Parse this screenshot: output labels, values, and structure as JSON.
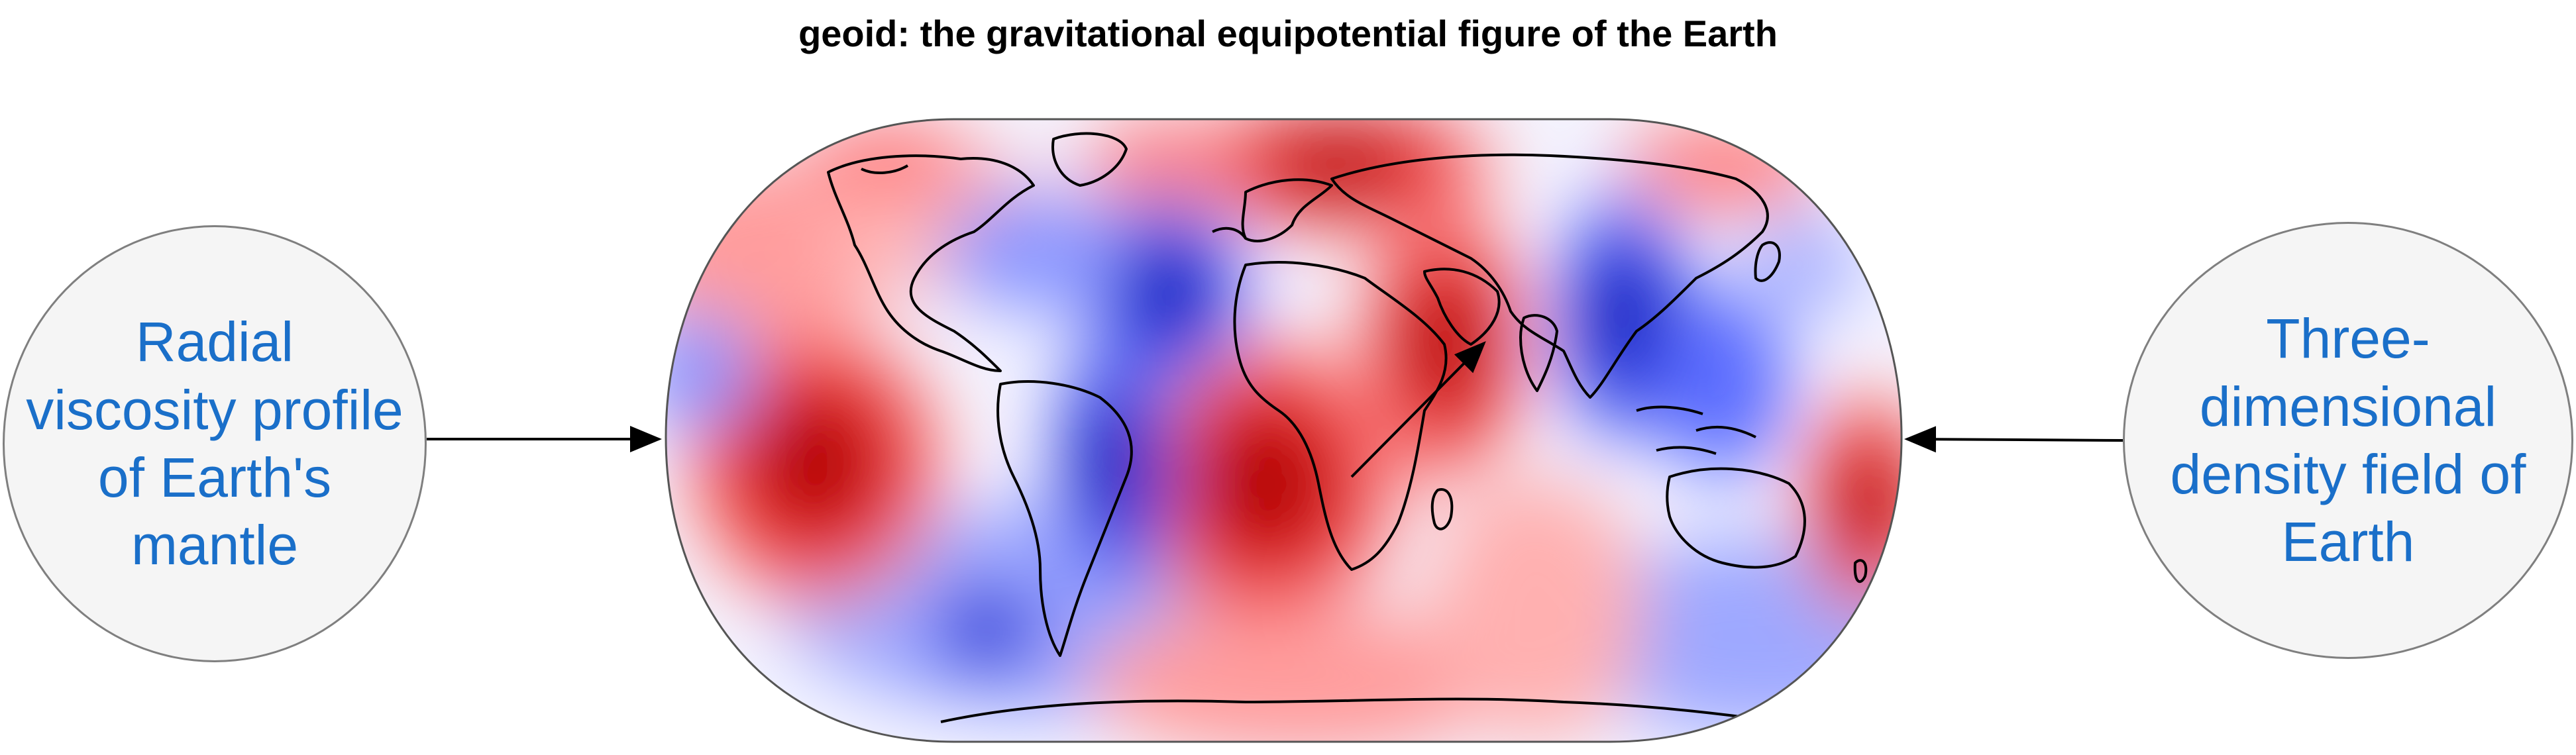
{
  "title": "geoid: the gravitational equipotential figure of the Earth",
  "left_node": {
    "label": "Radial viscosity profile of Earth's mantle"
  },
  "right_node": {
    "label": "Three-dimensional density field of Earth"
  },
  "map": {
    "projection": "robinson",
    "colormap": [
      "#0000c8",
      "#ffffff",
      "#d40000"
    ],
    "high_color": "#cc0000",
    "low_color": "#0000cc"
  }
}
